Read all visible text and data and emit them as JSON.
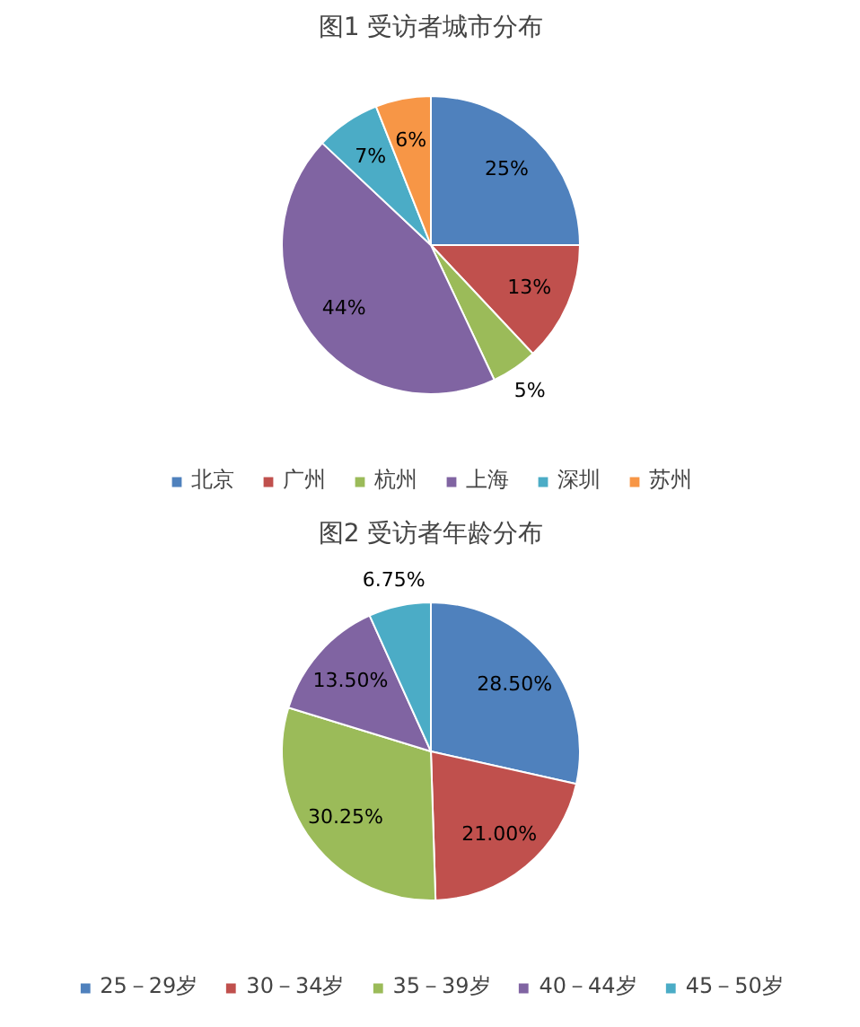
{
  "chart_data": [
    {
      "type": "pie",
      "title": "图1 受访者城市分布",
      "categories": [
        "北京",
        "广州",
        "杭州",
        "上海",
        "深圳",
        "苏州"
      ],
      "values": [
        25,
        13,
        5,
        44,
        7,
        6
      ],
      "colors": [
        "#4f81bd",
        "#c0504d",
        "#9bbb59",
        "#8064a2",
        "#4bacc6",
        "#f79646"
      ],
      "value_labels": [
        "25%",
        "13%",
        "5%",
        "44%",
        "7%",
        "6%"
      ],
      "legend": "bottom"
    },
    {
      "type": "pie",
      "title": "图2 受访者年龄分布",
      "categories": [
        "25－29岁",
        "30－34岁",
        "35－39岁",
        "40－44岁",
        "45－50岁"
      ],
      "values": [
        28.5,
        21.0,
        30.25,
        13.5,
        6.75
      ],
      "colors": [
        "#4f81bd",
        "#c0504d",
        "#9bbb59",
        "#8064a2",
        "#4bacc6"
      ],
      "value_labels": [
        "28.50%",
        "21.00%",
        "30.25%",
        "13.50%",
        "6.75%"
      ],
      "legend": "bottom"
    }
  ]
}
